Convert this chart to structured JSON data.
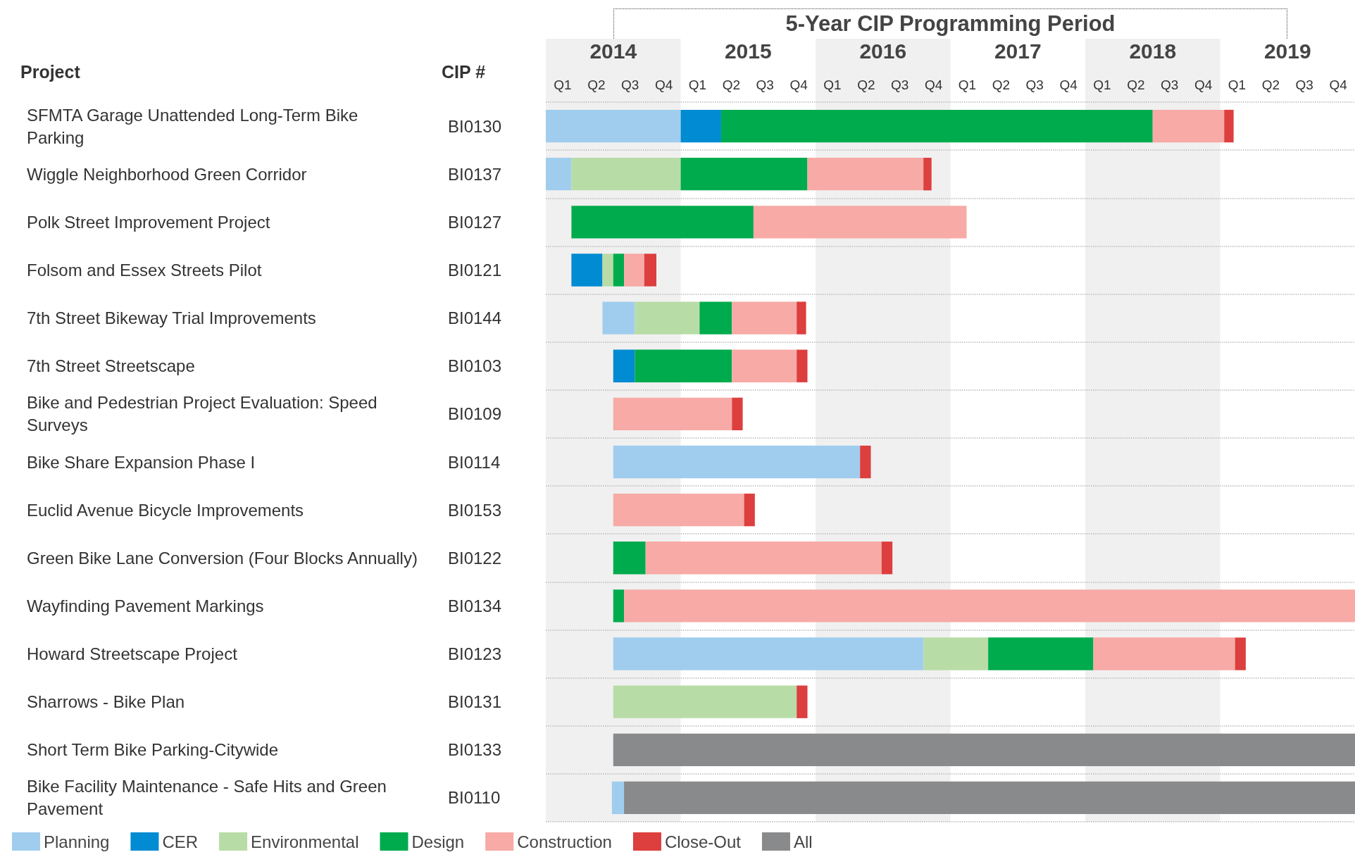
{
  "chart_data": {
    "type": "bar",
    "orientation": "horizontal",
    "title": "5-Year CIP Programming Period",
    "ylabel": "Project",
    "y2label": "CIP #",
    "categories": [
      "SFMTA Garage Unattended Long-Term Bike Parking",
      "Wiggle Neighborhood Green Corridor",
      "Polk Street Improvement Project",
      "Folsom and Essex Streets Pilot",
      "7th Street Bikeway Trial Improvements",
      "7th Street Streetscape",
      "Bike and Pedestrian Project Evaluation: Speed Surveys",
      "Bike Share Expansion Phase I",
      "Euclid Avenue Bicycle Improvements",
      "Green Bike Lane Conversion (Four Blocks Annually)",
      "Wayfinding Pavement Markings",
      "Howard Streetscape Project",
      "Sharrows - Bike Plan",
      "Short Term Bike Parking-Citywide",
      "Bike Facility Maintenance - Safe Hits and Green Pavement"
    ],
    "y2_categories": [
      "BI0130",
      "BI0137",
      "BI0127",
      "BI0121",
      "BI0144",
      "BI0103",
      "BI0109",
      "BI0114",
      "BI0153",
      "BI0122",
      "BI0134",
      "BI0123",
      "BI0131",
      "BI0133",
      "BI0110"
    ],
    "series": [
      {
        "name": "Planning",
        "color": "#a0cdee",
        "base": [
          2014.0,
          2014.0,
          null,
          null,
          2014.42,
          null,
          null,
          2014.5,
          null,
          null,
          null,
          2014.5,
          null,
          null,
          2014.49
        ],
        "values": [
          1.0,
          0.19,
          null,
          null,
          0.24,
          null,
          null,
          1.83,
          null,
          null,
          null,
          2.3,
          null,
          null,
          0.09
        ]
      },
      {
        "name": "CER",
        "color": "#008bd2",
        "base": [
          2015.0,
          null,
          null,
          2014.19,
          null,
          2014.5,
          null,
          null,
          null,
          null,
          null,
          null,
          null,
          null,
          null
        ],
        "values": [
          0.3,
          null,
          null,
          0.23,
          null,
          0.16,
          null,
          null,
          null,
          null,
          null,
          null,
          null,
          null,
          null
        ]
      },
      {
        "name": "Environmental",
        "color": "#b8dca6",
        "base": [
          null,
          2014.19,
          null,
          2014.42,
          2014.66,
          null,
          null,
          null,
          null,
          null,
          null,
          2016.8,
          2014.5,
          null,
          null
        ],
        "values": [
          null,
          0.81,
          null,
          0.08,
          0.48,
          null,
          null,
          null,
          null,
          null,
          null,
          0.48,
          1.36,
          null,
          null
        ]
      },
      {
        "name": "Design",
        "color": "#00ab4e",
        "base": [
          2015.3,
          2015.0,
          2014.19,
          2014.5,
          2015.14,
          2014.66,
          null,
          null,
          null,
          2014.5,
          2014.5,
          2017.28,
          null,
          null,
          null
        ],
        "values": [
          3.2,
          0.94,
          1.35,
          0.08,
          0.24,
          0.72,
          null,
          null,
          null,
          0.24,
          0.08,
          0.78,
          null,
          null,
          null
        ]
      },
      {
        "name": "Construction",
        "color": "#f7aaa6",
        "base": [
          2018.5,
          2015.94,
          2015.54,
          2014.58,
          2015.38,
          2015.38,
          2014.5,
          null,
          2014.5,
          2014.74,
          2014.58,
          2018.06,
          null,
          null,
          null
        ],
        "values": [
          0.53,
          0.86,
          1.58,
          0.15,
          0.48,
          0.48,
          0.88,
          null,
          0.97,
          1.75,
          5.42,
          1.05,
          null,
          null,
          null
        ]
      },
      {
        "name": "Close-Out",
        "color": "#dc3f3e",
        "base": [
          2019.03,
          2016.8,
          null,
          2014.73,
          2015.86,
          2015.86,
          2015.38,
          2016.33,
          2015.47,
          2016.49,
          null,
          2019.11,
          2015.86,
          null,
          null
        ],
        "values": [
          0.07,
          0.06,
          null,
          0.09,
          0.07,
          0.08,
          0.08,
          0.08,
          0.08,
          0.08,
          null,
          0.08,
          0.08,
          null,
          null
        ]
      },
      {
        "name": "All",
        "color": "#898a8c",
        "base": [
          null,
          null,
          null,
          null,
          null,
          null,
          null,
          null,
          null,
          null,
          null,
          null,
          null,
          2014.5,
          2014.58
        ],
        "values": [
          null,
          null,
          null,
          null,
          null,
          null,
          null,
          null,
          null,
          null,
          null,
          null,
          null,
          5.5,
          5.42
        ]
      }
    ],
    "xlim": [
      2014,
      2020
    ],
    "xticks": [
      {
        "value": 2014.5,
        "label": "2014"
      },
      {
        "value": 2015.5,
        "label": "2015"
      },
      {
        "value": 2016.5,
        "label": "2016"
      },
      {
        "value": 2017.5,
        "label": "2017"
      },
      {
        "value": 2018.5,
        "label": "2018"
      },
      {
        "value": 2019.5,
        "label": "2019"
      }
    ],
    "annotations": [
      "Q1",
      "Q2",
      "Q3",
      "Q4",
      "Q1",
      "Q2",
      "Q3",
      "Q4",
      "Q1",
      "Q2",
      "Q3",
      "Q4",
      "Q1",
      "Q2",
      "Q3",
      "Q4",
      "Q1",
      "Q2",
      "Q3",
      "Q4",
      "Q1",
      "Q2",
      "Q3",
      "Q4"
    ],
    "bands": [
      {
        "axis": "x",
        "from": 2014,
        "to": 2015,
        "color": "#f0f0f0"
      },
      {
        "axis": "x",
        "from": 2016,
        "to": 2017,
        "color": "#f0f0f0"
      },
      {
        "axis": "x",
        "from": 2018,
        "to": 2019,
        "color": "#f0f0f0"
      }
    ],
    "grid": "y",
    "legend": "bottom left"
  }
}
